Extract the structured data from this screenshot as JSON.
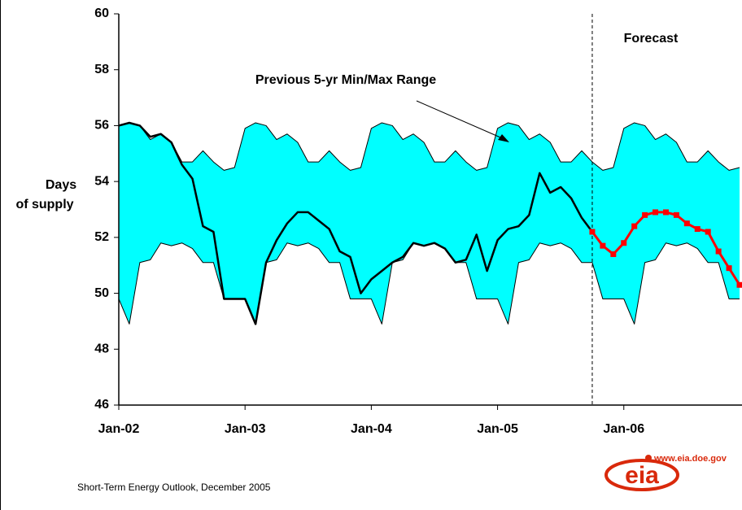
{
  "chart_data": {
    "type": "line",
    "ylabel": [
      "Days",
      "of supply"
    ],
    "categories": [
      "Jan-02",
      null,
      null,
      null,
      null,
      null,
      null,
      null,
      null,
      null,
      null,
      null,
      "Jan-03",
      null,
      null,
      null,
      null,
      null,
      null,
      null,
      null,
      null,
      null,
      null,
      "Jan-04",
      null,
      null,
      null,
      null,
      null,
      null,
      null,
      null,
      null,
      null,
      null,
      "Jan-05",
      null,
      null,
      null,
      null,
      null,
      null,
      null,
      null,
      null,
      null,
      null,
      "Jan-06",
      null,
      null,
      null,
      null,
      null,
      null,
      null,
      null,
      null,
      null,
      null
    ],
    "ylim": [
      46,
      60
    ],
    "yticks": [
      46,
      48,
      50,
      52,
      54,
      56,
      58,
      60
    ],
    "range": {
      "label": "Previous 5-yr Min/Max Range",
      "color": "#00ffff",
      "line_color": "#000000",
      "max": [
        56.0,
        56.1,
        56.0,
        55.5,
        55.7,
        55.4,
        54.7,
        54.7,
        55.1,
        54.7,
        54.4,
        54.5,
        55.9,
        56.1,
        56.0,
        55.5,
        55.7,
        55.4,
        54.7,
        54.7,
        55.1,
        54.7,
        54.4,
        54.5,
        55.9,
        56.1,
        56.0,
        55.5,
        55.7,
        55.4,
        54.7,
        54.7,
        55.1,
        54.7,
        54.4,
        54.5,
        55.9,
        56.1,
        56.0,
        55.5,
        55.7,
        55.4,
        54.7,
        54.7,
        55.1,
        54.7,
        54.4,
        54.5,
        55.9,
        56.1,
        56.0,
        55.5,
        55.7,
        55.4,
        54.7,
        54.7,
        55.1,
        54.7,
        54.4,
        54.5
      ],
      "min": [
        49.8,
        48.9,
        51.1,
        51.2,
        51.8,
        51.7,
        51.8,
        51.6,
        51.1,
        51.1,
        49.8,
        49.8,
        49.8,
        48.9,
        51.1,
        51.2,
        51.8,
        51.7,
        51.8,
        51.6,
        51.1,
        51.1,
        49.8,
        49.8,
        49.8,
        48.9,
        51.1,
        51.2,
        51.8,
        51.7,
        51.8,
        51.6,
        51.1,
        51.1,
        49.8,
        49.8,
        49.8,
        48.9,
        51.1,
        51.2,
        51.8,
        51.7,
        51.8,
        51.6,
        51.1,
        51.1,
        49.8,
        49.8,
        49.8,
        48.9,
        51.1,
        51.2,
        51.8,
        51.7,
        51.8,
        51.6,
        51.1,
        51.1,
        49.8,
        49.8
      ]
    },
    "series": [
      {
        "color": "#000000",
        "values": [
          56.0,
          56.1,
          56.0,
          55.6,
          55.7,
          55.4,
          54.6,
          54.1,
          52.4,
          52.2,
          49.8,
          49.8,
          49.8,
          48.9,
          51.1,
          51.9,
          52.5,
          52.9,
          52.9,
          52.6,
          52.3,
          51.5,
          51.3,
          50.0,
          50.5,
          50.8,
          51.1,
          51.3,
          51.8,
          51.7,
          51.8,
          51.6,
          51.1,
          51.2,
          52.1,
          50.8,
          51.9,
          52.3,
          52.4,
          52.8,
          54.3,
          53.6,
          53.8,
          53.4,
          52.7,
          52.2,
          null,
          null,
          null,
          null,
          null,
          null,
          null,
          null,
          null,
          null,
          null,
          null,
          null,
          null
        ]
      },
      {
        "color": "#ff0000",
        "markers": true,
        "values": [
          null,
          null,
          null,
          null,
          null,
          null,
          null,
          null,
          null,
          null,
          null,
          null,
          null,
          null,
          null,
          null,
          null,
          null,
          null,
          null,
          null,
          null,
          null,
          null,
          null,
          null,
          null,
          null,
          null,
          null,
          null,
          null,
          null,
          null,
          null,
          null,
          null,
          null,
          null,
          null,
          null,
          null,
          null,
          null,
          null,
          52.2,
          51.7,
          51.4,
          51.8,
          52.4,
          52.8,
          52.9,
          52.9,
          52.8,
          52.5,
          52.3,
          52.2,
          51.5,
          50.9,
          50.3
        ]
      }
    ],
    "forecast_label": "Forecast",
    "source": "Short-Term Energy Outlook, December 2005",
    "logo": {
      "url": "www.eia.doe.gov",
      "text": "eia"
    }
  }
}
